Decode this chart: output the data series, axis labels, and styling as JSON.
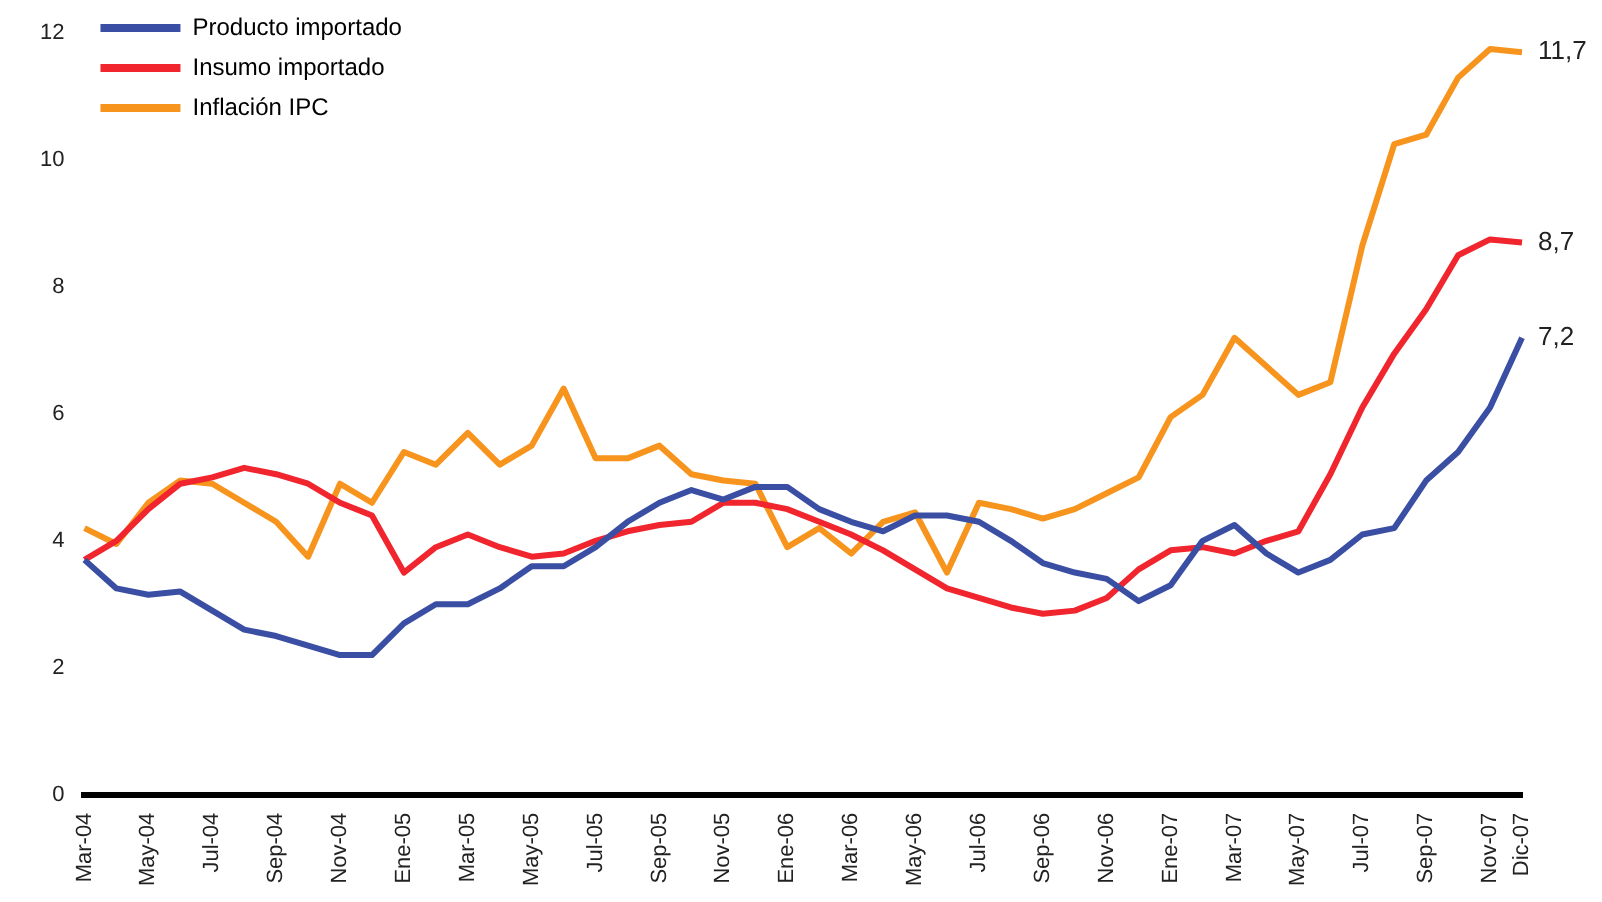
{
  "chart_data": {
    "type": "line",
    "categories": [
      "Mar-04",
      null,
      "May-04",
      null,
      "Jul-04",
      null,
      "Sep-04",
      null,
      "Nov-04",
      null,
      "Ene-05",
      null,
      "Mar-05",
      null,
      "May-05",
      null,
      "Jul-05",
      null,
      "Sep-05",
      null,
      "Nov-05",
      null,
      "Ene-06",
      null,
      "Mar-06",
      null,
      "May-06",
      null,
      "Jul-06",
      null,
      "Sep-06",
      null,
      "Nov-06",
      null,
      "Ene-07",
      null,
      "Mar-07",
      null,
      "May-07",
      null,
      "Jul-07",
      null,
      "Sep-07",
      null,
      "Nov-07",
      "Dic-07"
    ],
    "series": [
      {
        "name": "Producto importado",
        "color": "#3a4fa3",
        "values": [
          3.7,
          3.25,
          3.15,
          3.2,
          2.9,
          2.6,
          2.5,
          2.35,
          2.2,
          2.2,
          2.7,
          3.0,
          3.0,
          3.25,
          3.6,
          3.6,
          3.9,
          4.3,
          4.6,
          4.8,
          4.65,
          4.85,
          4.85,
          4.5,
          4.3,
          4.15,
          4.4,
          4.4,
          4.3,
          4.0,
          3.65,
          3.5,
          3.4,
          3.05,
          3.3,
          4.0,
          4.25,
          3.8,
          3.5,
          3.7,
          4.1,
          4.2,
          4.95,
          5.4,
          6.1,
          7.2
        ],
        "value_labels": [
          null,
          null,
          null,
          null,
          null,
          null,
          null,
          null,
          null,
          null,
          null,
          null,
          null,
          null,
          null,
          null,
          null,
          null,
          null,
          null,
          null,
          null,
          null,
          null,
          null,
          null,
          null,
          null,
          null,
          null,
          null,
          null,
          null,
          null,
          null,
          null,
          null,
          null,
          null,
          null,
          null,
          null,
          null,
          null,
          null,
          "7,2"
        ]
      },
      {
        "name": "Insumo importado",
        "color": "#f0252e",
        "values": [
          3.7,
          4.0,
          4.5,
          4.9,
          5.0,
          5.15,
          5.05,
          4.9,
          4.6,
          4.4,
          3.5,
          3.9,
          4.1,
          3.9,
          3.75,
          3.8,
          4.0,
          4.15,
          4.25,
          4.3,
          4.6,
          4.6,
          4.5,
          4.3,
          4.1,
          3.85,
          3.55,
          3.25,
          3.1,
          2.95,
          2.85,
          2.9,
          3.1,
          3.55,
          3.85,
          3.9,
          3.8,
          4.0,
          4.15,
          5.05,
          6.1,
          6.95,
          7.65,
          8.5,
          8.75,
          8.7
        ],
        "value_labels": [
          null,
          null,
          null,
          null,
          null,
          null,
          null,
          null,
          null,
          null,
          null,
          null,
          null,
          null,
          null,
          null,
          null,
          null,
          null,
          null,
          null,
          null,
          null,
          null,
          null,
          null,
          null,
          null,
          null,
          null,
          null,
          null,
          null,
          null,
          null,
          null,
          null,
          null,
          null,
          null,
          null,
          null,
          null,
          null,
          null,
          "8,7"
        ]
      },
      {
        "name": "Inflación IPC",
        "color": "#f7941d",
        "values": [
          4.2,
          3.95,
          4.6,
          4.95,
          4.9,
          4.6,
          4.3,
          3.75,
          4.9,
          4.6,
          5.4,
          5.2,
          5.7,
          5.2,
          5.5,
          6.4,
          5.3,
          5.3,
          5.5,
          5.05,
          4.95,
          4.9,
          3.9,
          4.2,
          3.8,
          4.3,
          4.45,
          3.5,
          4.6,
          4.5,
          4.35,
          4.5,
          4.75,
          5.0,
          5.95,
          6.3,
          7.2,
          6.75,
          6.3,
          6.5,
          8.65,
          10.25,
          10.4,
          11.3,
          11.75,
          11.7
        ],
        "value_labels": [
          null,
          null,
          null,
          null,
          null,
          null,
          null,
          null,
          null,
          null,
          null,
          null,
          null,
          null,
          null,
          null,
          null,
          null,
          null,
          null,
          null,
          null,
          null,
          null,
          null,
          null,
          null,
          null,
          null,
          null,
          null,
          null,
          null,
          null,
          null,
          null,
          null,
          null,
          null,
          null,
          null,
          null,
          null,
          null,
          null,
          "11,7"
        ]
      }
    ],
    "ylim": [
      0,
      12
    ],
    "yticks": [
      0,
      2,
      4,
      6,
      8,
      10,
      12
    ],
    "grid": false,
    "legend": "top left",
    "marker": "none",
    "line_style": "solid"
  }
}
